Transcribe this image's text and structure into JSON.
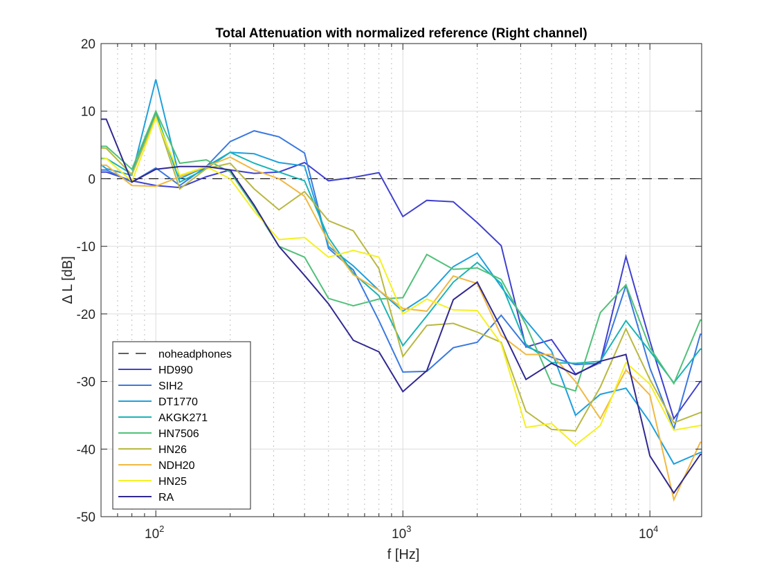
{
  "chart_data": {
    "type": "line",
    "title": "Total Attenuation with normalized reference (Right channel)",
    "xlabel": "f [Hz]",
    "ylabel": "Δ L [dB]",
    "xscale": "log",
    "xlim": [
      60,
      16200
    ],
    "ylim": [
      -50,
      20
    ],
    "yticks": [
      20,
      10,
      0,
      -10,
      -20,
      -30,
      -40,
      -50
    ],
    "xticks": [
      {
        "value": 100,
        "base": "10",
        "exp": "2"
      },
      {
        "value": 1000,
        "base": "10",
        "exp": "3"
      },
      {
        "value": 10000,
        "base": "10",
        "exp": "4"
      }
    ],
    "grid": true,
    "legend_position": "bottom-left",
    "x": [
      50,
      63,
      80,
      100,
      125,
      160,
      200,
      250,
      315,
      400,
      500,
      630,
      800,
      1000,
      1250,
      1600,
      2000,
      2500,
      3150,
      4000,
      5000,
      6300,
      8000,
      10000,
      12500,
      16000,
      20000
    ],
    "reference": {
      "name": "noheadphones",
      "value": 0,
      "color": "#000000",
      "style": "dashed"
    },
    "series": [
      {
        "name": "HD990",
        "color": "#4040d0",
        "values": [
          1.0,
          1.0,
          -0.3,
          -1.0,
          -1.3,
          0.3,
          1.3,
          0.8,
          1.0,
          2.4,
          -0.3,
          0.2,
          0.9,
          -5.6,
          -3.2,
          -3.4,
          -6.5,
          -9.9,
          -24.9,
          -23.8,
          -28.9,
          -27.2,
          -11.5,
          -24.0,
          -35.5,
          -30.0,
          -30.0
        ]
      },
      {
        "name": "SIH2",
        "color": "#3a78e0",
        "values": [
          1.3,
          1.3,
          -0.5,
          1.6,
          -1.0,
          1.8,
          5.5,
          7.1,
          6.2,
          3.8,
          -10.3,
          -13.5,
          -21.0,
          -28.6,
          -28.5,
          -25.0,
          -24.2,
          -20.2,
          -24.8,
          -26.4,
          -27.5,
          -27.3,
          -15.8,
          -28.0,
          -37.0,
          -23.0,
          -23.0
        ]
      },
      {
        "name": "DT1770",
        "color": "#1ea0dc",
        "values": [
          4.2,
          1.5,
          0.5,
          14.7,
          0.0,
          1.8,
          3.9,
          3.7,
          2.4,
          1.9,
          -10.0,
          -12.9,
          -16.5,
          -19.6,
          -17.3,
          -13.0,
          -11.0,
          -16.0,
          -21.0,
          -25.5,
          -35.0,
          -31.9,
          -31.0,
          -36.0,
          -42.2,
          -40.5,
          -40.5
        ]
      },
      {
        "name": "AKGK271",
        "color": "#18b4b4",
        "values": [
          3.0,
          3.0,
          0.7,
          9.8,
          -0.5,
          1.5,
          3.9,
          2.3,
          1.0,
          -0.3,
          -8.7,
          -14.0,
          -17.3,
          -24.7,
          -20.3,
          -15.3,
          -12.4,
          -15.5,
          -24.5,
          -27.2,
          -27.3,
          -27.0,
          -21.0,
          -25.5,
          -30.2,
          -25.2,
          -25.2
        ]
      },
      {
        "name": "HN7506",
        "color": "#50c078",
        "values": [
          4.8,
          4.8,
          1.4,
          10.0,
          2.3,
          2.8,
          1.0,
          -4.2,
          -10.0,
          -11.6,
          -17.7,
          -18.8,
          -17.8,
          -17.6,
          -11.2,
          -13.4,
          -13.2,
          -14.9,
          -21.6,
          -30.3,
          -31.4,
          -19.8,
          -15.7,
          -25.0,
          -30.3,
          -20.9,
          -20.9
        ]
      },
      {
        "name": "HN26",
        "color": "#b8b840",
        "values": [
          4.8,
          4.5,
          0.6,
          9.3,
          -1.5,
          1.5,
          2.3,
          -1.5,
          -4.6,
          -1.9,
          -6.2,
          -7.7,
          -13.3,
          -26.3,
          -21.7,
          -21.4,
          -22.7,
          -24.2,
          -34.4,
          -37.1,
          -37.3,
          -30.8,
          -22.2,
          -29.7,
          -36.1,
          -34.6,
          -34.6
        ]
      },
      {
        "name": "NDH20",
        "color": "#f0b840",
        "values": [
          2.0,
          2.0,
          -1.0,
          -1.1,
          0.3,
          1.8,
          3.2,
          1.3,
          0.0,
          -2.6,
          -9.3,
          -14.2,
          -16.5,
          -19.2,
          -19.6,
          -14.4,
          -15.5,
          -23.2,
          -26.0,
          -26.0,
          -30.0,
          -35.5,
          -28.3,
          -32.0,
          -47.5,
          -39.0,
          -39.0
        ]
      },
      {
        "name": "HN25",
        "color": "#f5f020",
        "values": [
          3.6,
          3.0,
          -0.4,
          9.0,
          0.5,
          1.8,
          0.0,
          -4.8,
          -9.0,
          -8.7,
          -11.6,
          -10.6,
          -11.6,
          -20.0,
          -17.8,
          -19.4,
          -19.5,
          -24.4,
          -36.8,
          -36.2,
          -39.4,
          -36.5,
          -27.2,
          -30.4,
          -37.2,
          -36.5,
          -36.5
        ]
      },
      {
        "name": "RA",
        "color": "#302890",
        "values": [
          8.8,
          8.8,
          -0.5,
          1.4,
          1.8,
          1.8,
          1.3,
          -3.9,
          -10.0,
          -14.3,
          -18.5,
          -23.9,
          -25.6,
          -31.5,
          -28.4,
          -17.9,
          -15.3,
          -22.1,
          -29.7,
          -27.3,
          -29.0,
          -27.0,
          -26.0,
          -41.0,
          -46.5,
          -40.8,
          -40.8
        ]
      }
    ]
  }
}
